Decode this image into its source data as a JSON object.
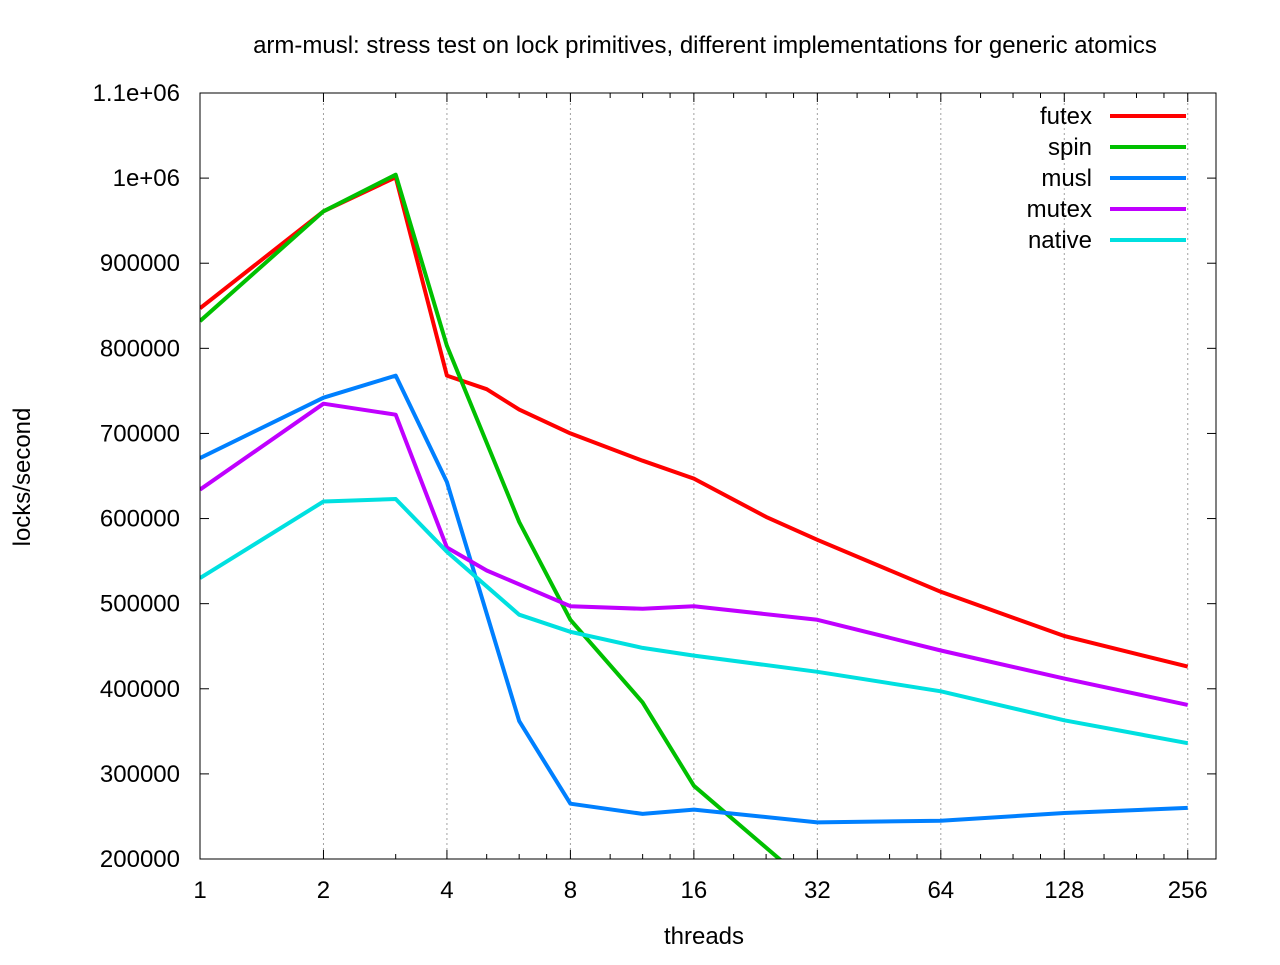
{
  "chart_data": {
    "type": "line",
    "title": "arm-musl: stress test on lock primitives, different implementations for generic atomics",
    "xlabel": "threads",
    "ylabel": "locks/second",
    "x_scale": "log2",
    "xlim": [
      1,
      300
    ],
    "ylim": [
      200000,
      1100000
    ],
    "x_ticks": [
      1,
      2,
      4,
      8,
      16,
      32,
      64,
      128,
      256
    ],
    "x_tick_labels": [
      "1",
      "2",
      "4",
      "8",
      "16",
      "32",
      "64",
      "128",
      "256"
    ],
    "y_ticks": [
      200000,
      300000,
      400000,
      500000,
      600000,
      700000,
      800000,
      900000,
      1000000,
      1100000
    ],
    "y_tick_labels": [
      "200000",
      "300000",
      "400000",
      "500000",
      "600000",
      "700000",
      "800000",
      "900000",
      "1e+06",
      "1.1e+06"
    ],
    "grid": "vertical-dotted",
    "legend_position": "top-right",
    "series": [
      {
        "name": "futex",
        "color": "#ff0000",
        "x": [
          1,
          2,
          3,
          4,
          5,
          6,
          8,
          12,
          16,
          24,
          32,
          64,
          128,
          256
        ],
        "y": [
          847000,
          961000,
          1001000,
          768000,
          752000,
          728000,
          700000,
          668000,
          647000,
          602000,
          575000,
          514000,
          462000,
          426000
        ]
      },
      {
        "name": "spin",
        "color": "#00c000",
        "x": [
          1,
          2,
          3,
          4,
          6,
          8,
          12,
          16,
          26
        ],
        "y": [
          832000,
          961000,
          1004000,
          803000,
          596000,
          481000,
          384000,
          286000,
          199000
        ]
      },
      {
        "name": "musl",
        "color": "#0080ff",
        "x": [
          1,
          2,
          3,
          4,
          6,
          8,
          12,
          16,
          32,
          64,
          128,
          256
        ],
        "y": [
          671000,
          742000,
          768000,
          643000,
          362000,
          265000,
          253000,
          258000,
          243000,
          245000,
          254000,
          260000
        ]
      },
      {
        "name": "mutex",
        "color": "#c000ff",
        "x": [
          1,
          2,
          3,
          4,
          5,
          8,
          12,
          16,
          32,
          64,
          128,
          256
        ],
        "y": [
          634000,
          735000,
          722000,
          566000,
          539000,
          497000,
          494000,
          497000,
          481000,
          445000,
          412000,
          381000
        ]
      },
      {
        "name": "native",
        "color": "#00e0e0",
        "x": [
          1,
          2,
          3,
          4,
          6,
          8,
          12,
          16,
          32,
          64,
          128,
          256
        ],
        "y": [
          530000,
          620000,
          623000,
          561000,
          487000,
          467000,
          448000,
          439000,
          420000,
          397000,
          363000,
          336000
        ]
      }
    ]
  }
}
